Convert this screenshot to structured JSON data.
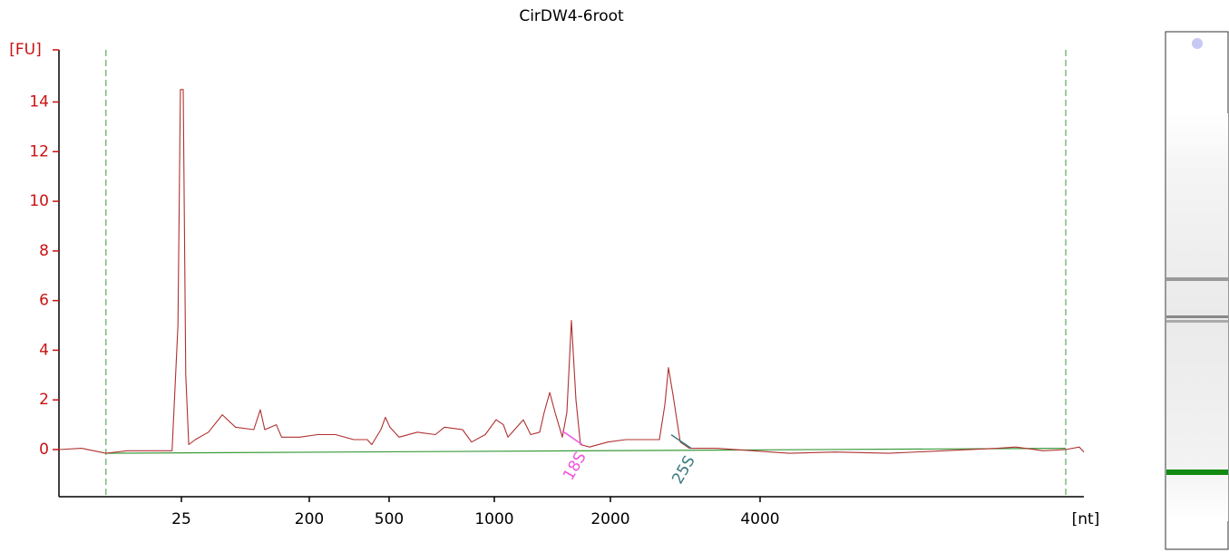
{
  "chart_data": {
    "type": "line",
    "title": "CirDW4-6root",
    "y_label": "[FU]",
    "x_label": "[nt]",
    "x": [
      0,
      4.6,
      9.6,
      13.9,
      23.1,
      24.3,
      24.8,
      27.5,
      31,
      35,
      44,
      62,
      81,
      99,
      124,
      133,
      139,
      155,
      162,
      187,
      231,
      299,
      367,
      418,
      435,
      469,
      486,
      504,
      547,
      634,
      720,
      763,
      849,
      892,
      957,
      1016,
      1078,
      1117,
      1250,
      1313,
      1391,
      1430,
      1477,
      1523,
      1586,
      1625,
      1664,
      1703,
      1742,
      1820,
      1977,
      2206,
      2509,
      2655,
      2727,
      2776,
      2836,
      2933,
      3055,
      3418,
      3903,
      4403,
      5034,
      5790,
      6546,
      7303,
      7555,
      7933,
      8248,
      8437,
      8500
    ],
    "values": [
      0,
      0.05,
      -0.15,
      -0.05,
      -0.05,
      5,
      14.5,
      14.5,
      3,
      0.2,
      0.4,
      0.7,
      1.4,
      0.9,
      0.8,
      1.6,
      0.8,
      1.0,
      0.5,
      0.5,
      0.6,
      0.6,
      0.4,
      0.4,
      0.2,
      0.8,
      1.3,
      0.9,
      0.5,
      0.7,
      0.6,
      0.9,
      0.8,
      0.3,
      0.6,
      1.2,
      1.0,
      0.5,
      1.2,
      0.6,
      0.7,
      1.5,
      2.3,
      1.5,
      0.5,
      1.5,
      5.2,
      2.0,
      0.2,
      0.1,
      0.3,
      0.4,
      0.4,
      0.4,
      1.8,
      3.3,
      2.2,
      0.3,
      0.05,
      0.05,
      -0.05,
      -0.15,
      -0.1,
      -0.15,
      -0.05,
      0.05,
      0.1,
      -0.05,
      0,
      0.1,
      -0.1
    ],
    "color": "#b03030",
    "xlim": [
      0,
      8500
    ],
    "xticks": [
      25,
      200,
      500,
      1000,
      2000,
      4000
    ],
    "ylim": [
      -1.9,
      16.1
    ],
    "yticks": [
      0,
      2,
      4,
      6,
      8,
      10,
      12,
      14
    ],
    "marker_lines": [
      9.6,
      8248
    ],
    "baseline": {
      "x": [
        9.6,
        8248
      ],
      "y": [
        -0.15,
        0.05
      ],
      "color": "#3a9a3a"
    },
    "annotations": [
      {
        "text": "18S",
        "x": 1742,
        "y": 0.2,
        "color": "#ee55dd"
      },
      {
        "text": "25S",
        "x": 3055,
        "y": 0.05,
        "color": "#3a7a80"
      }
    ]
  }
}
